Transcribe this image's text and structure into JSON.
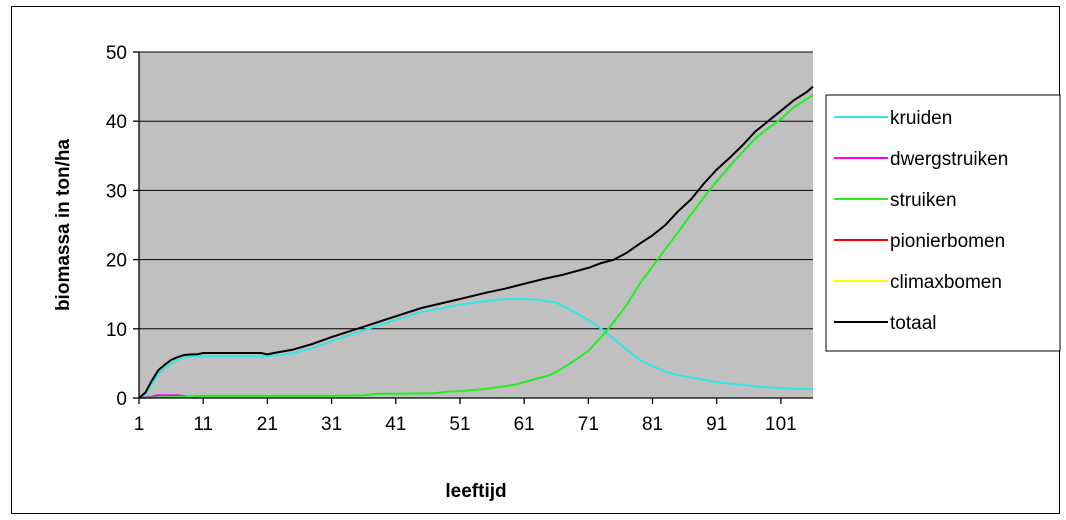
{
  "chart_data": {
    "type": "line",
    "title": "",
    "xlabel": "leeftijd",
    "ylabel": "biomassa in ton/ha",
    "xlim": [
      1,
      106
    ],
    "ylim": [
      0,
      50
    ],
    "x_ticks": [
      1,
      11,
      21,
      31,
      41,
      51,
      61,
      71,
      81,
      91,
      101
    ],
    "y_ticks": [
      0,
      10,
      20,
      30,
      40,
      50
    ],
    "grid": "horizontal",
    "plot_background": "#c0c0c0",
    "legend_position": "right",
    "series": [
      {
        "name": "kruiden",
        "color": "#33e6e6",
        "points": [
          [
            1,
            0
          ],
          [
            2,
            0.5
          ],
          [
            3,
            2
          ],
          [
            4,
            3.5
          ],
          [
            5,
            4.3
          ],
          [
            6,
            5
          ],
          [
            7,
            5.5
          ],
          [
            8,
            5.8
          ],
          [
            9,
            6
          ],
          [
            10,
            6
          ],
          [
            11,
            6
          ],
          [
            15,
            6
          ],
          [
            20,
            6
          ],
          [
            21,
            6
          ],
          [
            25,
            6.5
          ],
          [
            28,
            7.2
          ],
          [
            31,
            8.2
          ],
          [
            35,
            9.5
          ],
          [
            41,
            11.3
          ],
          [
            45,
            12.4
          ],
          [
            51,
            13.5
          ],
          [
            55,
            14
          ],
          [
            58,
            14.3
          ],
          [
            61,
            14.3
          ],
          [
            63,
            14.2
          ],
          [
            66,
            13.8
          ],
          [
            68,
            12.8
          ],
          [
            71,
            11.3
          ],
          [
            73,
            10
          ],
          [
            75,
            8.5
          ],
          [
            77,
            7
          ],
          [
            79,
            5.5
          ],
          [
            81,
            4.6
          ],
          [
            83,
            3.8
          ],
          [
            85,
            3.3
          ],
          [
            88,
            2.8
          ],
          [
            91,
            2.3
          ],
          [
            95,
            1.9
          ],
          [
            98,
            1.6
          ],
          [
            101,
            1.4
          ],
          [
            104,
            1.3
          ],
          [
            106,
            1.3
          ]
        ]
      },
      {
        "name": "dwergstruiken",
        "color": "#ff00ff",
        "points": [
          [
            1,
            0
          ],
          [
            3,
            0.2
          ],
          [
            4,
            0.4
          ],
          [
            7,
            0.4
          ],
          [
            8,
            0.3
          ],
          [
            9,
            0.1
          ],
          [
            10,
            0
          ]
        ]
      },
      {
        "name": "struiken",
        "color": "#22ee22",
        "points": [
          [
            1,
            0
          ],
          [
            8,
            0.2
          ],
          [
            11,
            0.3
          ],
          [
            21,
            0.3
          ],
          [
            31,
            0.3
          ],
          [
            36,
            0.4
          ],
          [
            38,
            0.6
          ],
          [
            41,
            0.6
          ],
          [
            47,
            0.7
          ],
          [
            49,
            0.9
          ],
          [
            51,
            1
          ],
          [
            55,
            1.3
          ],
          [
            58,
            1.7
          ],
          [
            60,
            2
          ],
          [
            61,
            2.3
          ],
          [
            63,
            2.8
          ],
          [
            65,
            3.3
          ],
          [
            67,
            4.3
          ],
          [
            69,
            5.5
          ],
          [
            71,
            6.8
          ],
          [
            73,
            8.8
          ],
          [
            75,
            11
          ],
          [
            77,
            13.5
          ],
          [
            79,
            16.5
          ],
          [
            81,
            19
          ],
          [
            83,
            21.5
          ],
          [
            85,
            24
          ],
          [
            87,
            26.5
          ],
          [
            89,
            29
          ],
          [
            91,
            31.3
          ],
          [
            93,
            33.5
          ],
          [
            95,
            35.5
          ],
          [
            97,
            37.5
          ],
          [
            99,
            39
          ],
          [
            101,
            40.3
          ],
          [
            103,
            42
          ],
          [
            105,
            43.2
          ],
          [
            106,
            43.8
          ]
        ]
      },
      {
        "name": "pionierbomen",
        "color": "#ff0000",
        "points": []
      },
      {
        "name": "climaxbomen",
        "color": "#ffff00",
        "points": []
      },
      {
        "name": "totaal",
        "color": "#000000",
        "points": [
          [
            1,
            0
          ],
          [
            2,
            0.8
          ],
          [
            3,
            2.5
          ],
          [
            4,
            4
          ],
          [
            5,
            4.8
          ],
          [
            6,
            5.5
          ],
          [
            7,
            5.9
          ],
          [
            8,
            6.2
          ],
          [
            9,
            6.3
          ],
          [
            10,
            6.3
          ],
          [
            11,
            6.5
          ],
          [
            15,
            6.5
          ],
          [
            20,
            6.5
          ],
          [
            21,
            6.3
          ],
          [
            22,
            6.5
          ],
          [
            25,
            7
          ],
          [
            28,
            7.8
          ],
          [
            31,
            8.8
          ],
          [
            35,
            10
          ],
          [
            41,
            11.8
          ],
          [
            45,
            13
          ],
          [
            51,
            14.3
          ],
          [
            55,
            15.2
          ],
          [
            58,
            15.8
          ],
          [
            61,
            16.5
          ],
          [
            64,
            17.2
          ],
          [
            67,
            17.8
          ],
          [
            71,
            18.8
          ],
          [
            73,
            19.5
          ],
          [
            75,
            20
          ],
          [
            77,
            21
          ],
          [
            79,
            22.3
          ],
          [
            81,
            23.5
          ],
          [
            83,
            25
          ],
          [
            85,
            27
          ],
          [
            87,
            28.7
          ],
          [
            89,
            31
          ],
          [
            91,
            33
          ],
          [
            93,
            34.7
          ],
          [
            95,
            36.5
          ],
          [
            97,
            38.5
          ],
          [
            99,
            40
          ],
          [
            101,
            41.5
          ],
          [
            103,
            43
          ],
          [
            105,
            44.2
          ],
          [
            106,
            45
          ]
        ]
      }
    ]
  }
}
